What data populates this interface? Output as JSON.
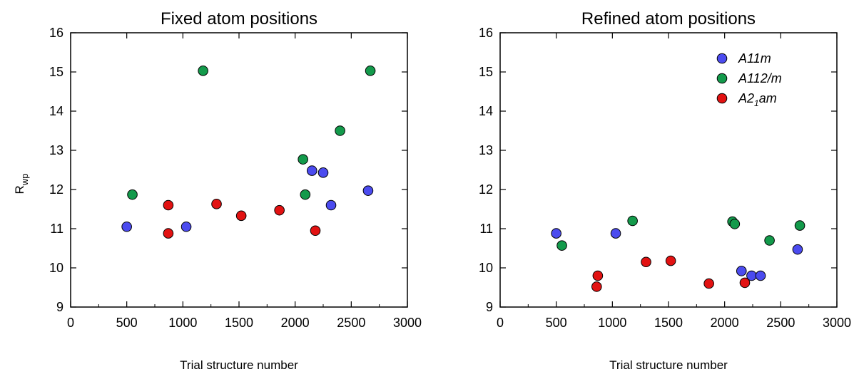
{
  "chart_data": [
    {
      "type": "scatter",
      "title": "Fixed atom positions",
      "xlabel": "Trial structure number",
      "ylabel": "R",
      "ylabel_sub": "wp",
      "xlim": [
        0,
        3000
      ],
      "ylim": [
        9,
        16
      ],
      "xticks": [
        "0",
        "500",
        "1000",
        "1500",
        "2000",
        "2500",
        "3000"
      ],
      "yticks": [
        "9",
        "10",
        "11",
        "12",
        "13",
        "14",
        "15",
        "16"
      ],
      "grid": false,
      "legend": null,
      "series": [
        {
          "key": "A11m",
          "color": "#4b4bef",
          "points": [
            [
              500,
              11.05
            ],
            [
              1030,
              11.05
            ],
            [
              2150,
              12.48
            ],
            [
              2250,
              12.43
            ],
            [
              2320,
              11.6
            ],
            [
              2650,
              11.97
            ]
          ]
        },
        {
          "key": "A112/m",
          "color": "#139a4b",
          "points": [
            [
              550,
              11.87
            ],
            [
              1180,
              15.03
            ],
            [
              2070,
              12.77
            ],
            [
              2090,
              11.87
            ],
            [
              2400,
              13.5
            ],
            [
              2670,
              15.03
            ]
          ]
        },
        {
          "key": "A21am",
          "color": "#e21212",
          "points": [
            [
              870,
              11.6
            ],
            [
              870,
              10.88
            ],
            [
              1300,
              11.63
            ],
            [
              1520,
              11.33
            ],
            [
              1860,
              11.47
            ],
            [
              2180,
              10.95
            ]
          ]
        }
      ]
    },
    {
      "type": "scatter",
      "title": "Refined atom positions",
      "xlabel": "Trial structure number",
      "ylabel": "",
      "xlim": [
        0,
        3000
      ],
      "ylim": [
        9,
        16
      ],
      "xticks": [
        "0",
        "500",
        "1000",
        "1500",
        "2000",
        "2500",
        "3000"
      ],
      "yticks": [
        "9",
        "10",
        "11",
        "12",
        "13",
        "14",
        "15",
        "16"
      ],
      "grid": false,
      "legend": "top-right",
      "series": [
        {
          "key": "A11m",
          "name": "A11m",
          "color": "#4b4bef",
          "points": [
            [
              500,
              10.88
            ],
            [
              1030,
              10.88
            ],
            [
              2150,
              9.92
            ],
            [
              2240,
              9.8
            ],
            [
              2320,
              9.8
            ],
            [
              2650,
              10.47
            ]
          ]
        },
        {
          "key": "A112/m",
          "name": "A112/m",
          "color": "#139a4b",
          "points": [
            [
              550,
              10.57
            ],
            [
              1180,
              11.2
            ],
            [
              2070,
              11.18
            ],
            [
              2090,
              11.12
            ],
            [
              2400,
              10.7
            ],
            [
              2670,
              11.08
            ]
          ]
        },
        {
          "key": "A21am",
          "name": "A2",
          "name_sub": "1",
          "name_tail": "am",
          "color": "#e21212",
          "points": [
            [
              870,
              9.8
            ],
            [
              860,
              9.52
            ],
            [
              1300,
              10.15
            ],
            [
              1520,
              10.18
            ],
            [
              1860,
              9.6
            ],
            [
              2180,
              9.62
            ]
          ]
        }
      ]
    }
  ]
}
